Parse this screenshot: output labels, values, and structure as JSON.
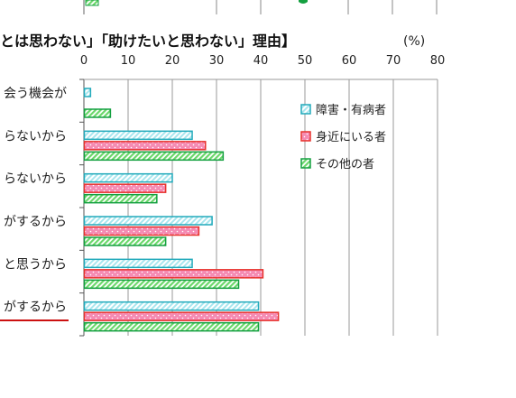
{
  "chart_data": {
    "type": "bar",
    "orientation": "horizontal",
    "title": "とは思わない」「助けたいと思わない」理由】",
    "unit": "(%)",
    "x_ticks": [
      0,
      10,
      20,
      30,
      40,
      50,
      60,
      70,
      80
    ],
    "xlim": [
      0,
      80
    ],
    "categories": [
      "会う機会が",
      "らないから",
      "らないから",
      "がするから",
      "と思うから",
      "がするから"
    ],
    "highlighted_category_index": 5,
    "series": [
      {
        "name": "障害・有病者",
        "color": "#22aabb",
        "fill": "#c9eef2",
        "values": [
          1.5,
          24.5,
          20,
          29,
          24.5,
          39.5
        ]
      },
      {
        "name": "身近にいる者",
        "color": "#e8322c",
        "fill": "#f78fb6",
        "values": [
          null,
          27.5,
          18.5,
          26,
          40.5,
          44
        ]
      },
      {
        "name": "その他の者",
        "color": "#14a040",
        "fill": "#a6e7a6",
        "values": [
          6,
          31.5,
          16.5,
          18.5,
          35,
          39.5
        ]
      }
    ],
    "gridlines": true,
    "legend_position": "top-right-inside",
    "top_fragment_values": {
      "first_series": 3
    }
  }
}
